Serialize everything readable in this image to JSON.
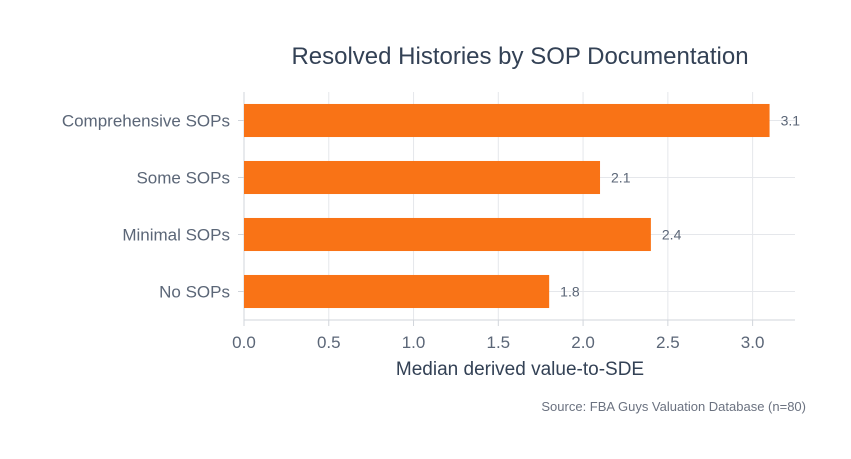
{
  "chart_data": {
    "type": "bar",
    "orientation": "horizontal",
    "title": "Resolved Histories by SOP Documentation",
    "xlabel": "Median derived value-to-SDE",
    "ylabel": "",
    "categories": [
      "Comprehensive SOPs",
      "Some SOPs",
      "Minimal SOPs",
      "No SOPs"
    ],
    "values": [
      3.1,
      2.1,
      2.4,
      1.8
    ],
    "data_labels": [
      "3.1",
      "2.1",
      "2.4",
      "1.8"
    ],
    "xlim": [
      0,
      3.25
    ],
    "x_ticks": [
      0,
      0.5,
      1,
      1.5,
      2,
      2.5,
      3
    ],
    "x_tick_labels": [
      "0.0",
      "0.5",
      "1.0",
      "1.5",
      "2.0",
      "2.5",
      "3.0"
    ],
    "grid": true,
    "bar_color": "#f97316",
    "source": "Source: FBA Guys Valuation Database (n=80)"
  }
}
